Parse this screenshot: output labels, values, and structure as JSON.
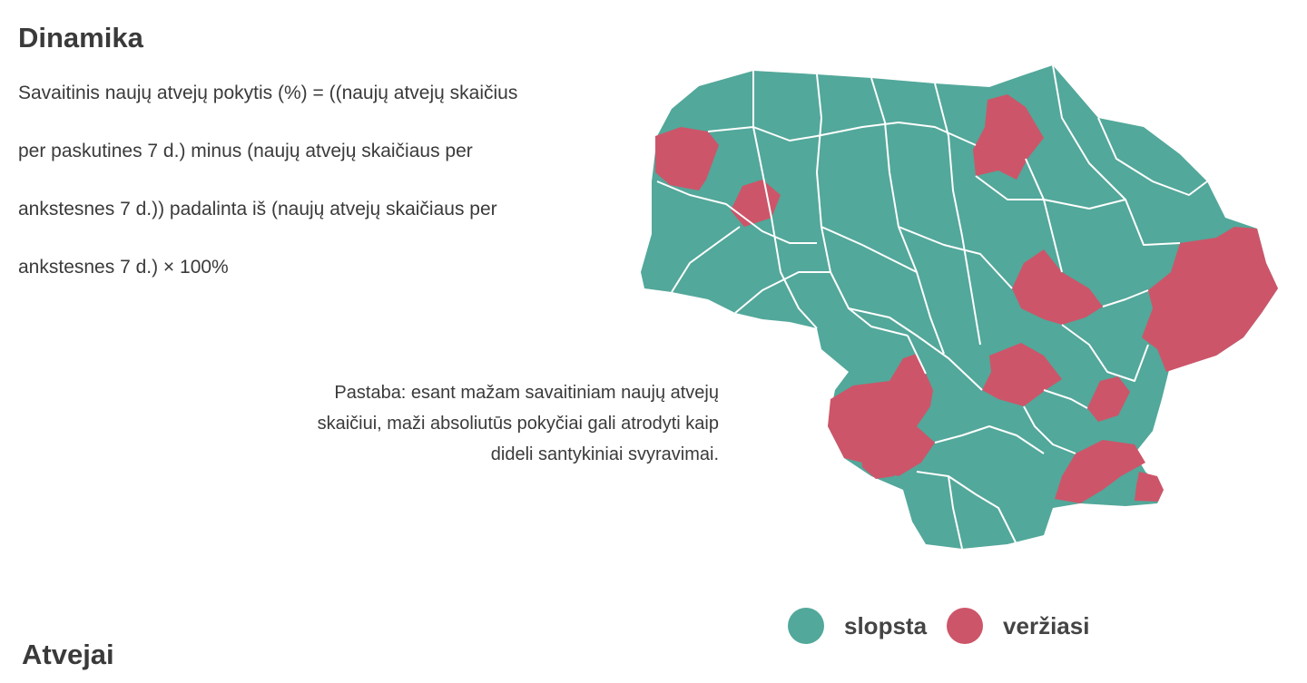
{
  "sections": {
    "dynamics_title": "Dinamika",
    "cases_title": "Atvejai"
  },
  "formula": {
    "lines": [
      "Savaitinis naujų atvejų pokytis (%) = ((naujų atvejų skaičius",
      "per paskutines 7 d.) minus (naujų atvejų skaičiaus per",
      "ankstesnes 7 d.)) padalinta iš (naujų atvejų skaičiaus per",
      "ankstesnes 7 d.) × 100%"
    ]
  },
  "note": {
    "lines": [
      "Pastaba: esant mažam savaitiniam naujų atvejų",
      "skaičiui, maži absoliutūs pokyčiai gali atrodyti kaip",
      "dideli santykiniai svyravimai."
    ]
  },
  "legend": {
    "items": [
      {
        "label": "slopsta",
        "color": "#52a89a"
      },
      {
        "label": "veržiasi",
        "color": "#cd5569"
      }
    ]
  },
  "map": {
    "colors": {
      "declining": "#52a89a",
      "rising": "#cd5569"
    }
  }
}
